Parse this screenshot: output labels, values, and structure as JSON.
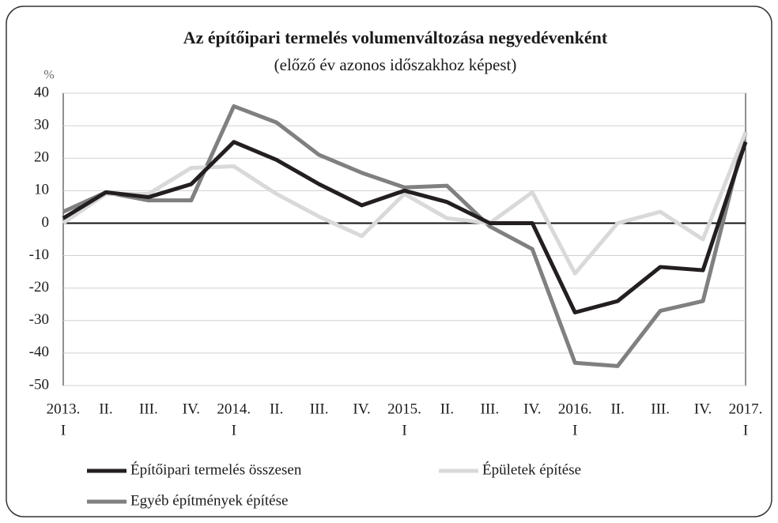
{
  "chart_data": {
    "type": "line",
    "title": "Az építőipari termelés volumenváltozása negyedévenként",
    "subtitle": "(előző év azonos időszakhoz képest)",
    "y_label": "%",
    "categories": [
      [
        "2013.",
        "I"
      ],
      [
        "II."
      ],
      [
        "III."
      ],
      [
        "IV."
      ],
      [
        "2014.",
        "I"
      ],
      [
        "II."
      ],
      [
        "III."
      ],
      [
        "IV."
      ],
      [
        "2015.",
        "I"
      ],
      [
        "II."
      ],
      [
        "III."
      ],
      [
        "IV."
      ],
      [
        "2016.",
        "I"
      ],
      [
        "II."
      ],
      [
        "III."
      ],
      [
        "IV."
      ],
      [
        "2017.",
        "I"
      ]
    ],
    "series": [
      {
        "name": "Építőipari termelés összesen",
        "color": "#231f20",
        "values": [
          1.5,
          9.5,
          8,
          12,
          25,
          19.5,
          12,
          5.5,
          10,
          6.5,
          0,
          0,
          -27.5,
          -24,
          -13.5,
          -14.5,
          25
        ]
      },
      {
        "name": "Épületek építése",
        "color": "#d9d9d9",
        "values": [
          0,
          9,
          9,
          17,
          17.5,
          9,
          2,
          -4,
          9,
          1.5,
          0,
          9.5,
          -15.5,
          0,
          3.5,
          -5,
          28
        ]
      },
      {
        "name": "Egyéb építmények építése",
        "color": "#808080",
        "values": [
          3.5,
          9.5,
          7,
          7,
          36,
          31,
          21,
          15.5,
          11,
          11.5,
          -1,
          -8,
          -43,
          -44,
          -27,
          -24,
          28
        ]
      }
    ],
    "ylim": [
      -50,
      40
    ],
    "yticks": [
      -50,
      -40,
      -30,
      -20,
      -10,
      0,
      10,
      20,
      30,
      40
    ],
    "grid": true
  }
}
